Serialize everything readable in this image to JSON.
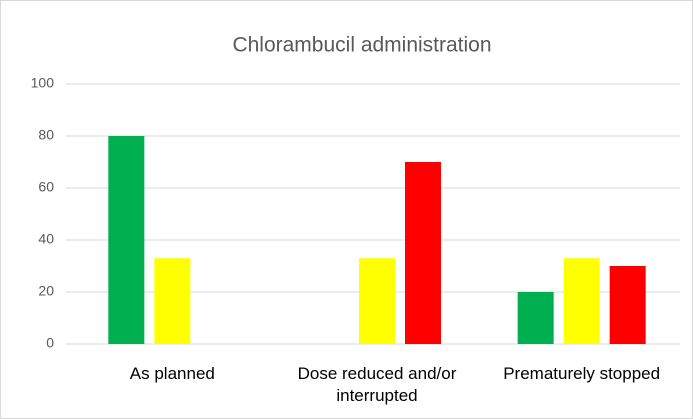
{
  "chart_data": {
    "type": "bar",
    "title": "Chlorambucil administration",
    "categories": [
      "As planned",
      "Dose reduced and/or interrupted",
      "Prematurely stopped"
    ],
    "series": [
      {
        "color": "#00b050",
        "values": [
          80,
          null,
          20
        ]
      },
      {
        "color": "#ffff00",
        "values": [
          33,
          33,
          33
        ]
      },
      {
        "color": "#ff0000",
        "values": [
          null,
          70,
          30
        ]
      }
    ],
    "ylim": [
      0,
      100
    ],
    "yticks": [
      0,
      20,
      40,
      60,
      80,
      100
    ],
    "grid": true
  }
}
